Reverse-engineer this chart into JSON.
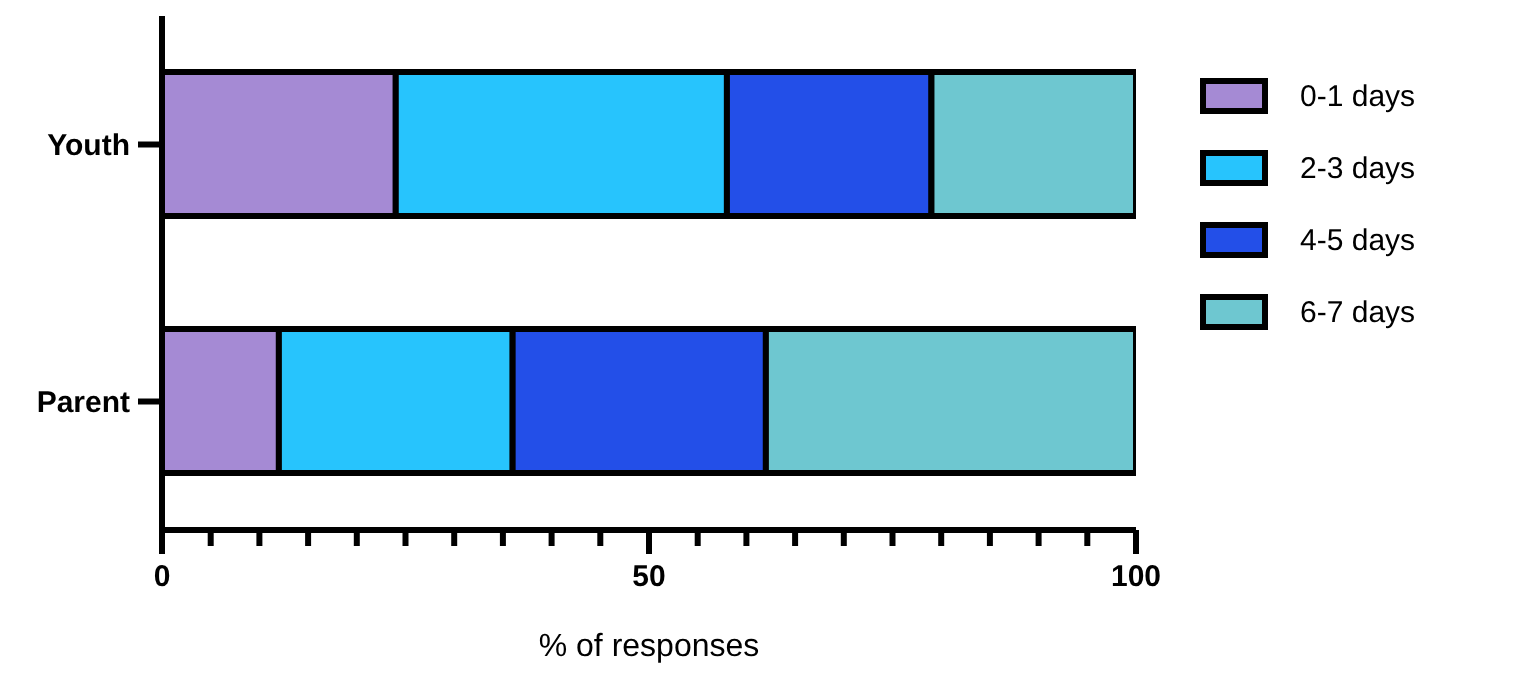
{
  "chart_data": {
    "type": "bar",
    "orientation": "horizontal",
    "stacked": true,
    "categories": [
      "Youth",
      "Parent"
    ],
    "series": [
      {
        "name": "0-1 days",
        "color": "#a58ad4",
        "values": [
          24,
          12
        ]
      },
      {
        "name": "2-3 days",
        "color": "#27c4fd",
        "values": [
          34,
          24
        ]
      },
      {
        "name": "4-5 days",
        "color": "#234fe8",
        "values": [
          21,
          26
        ]
      },
      {
        "name": "6-7 days",
        "color": "#6ec7d0",
        "values": [
          21,
          38
        ]
      }
    ],
    "xlabel": "% of responses",
    "xlim": [
      0,
      100
    ],
    "xticks": [
      0,
      {
        "value": 5,
        "label": null
      },
      {
        "value": 10,
        "label": null
      },
      {
        "value": 15,
        "label": null
      },
      {
        "value": 20,
        "label": null
      },
      {
        "value": 25,
        "label": null
      },
      {
        "value": 30,
        "label": null
      },
      {
        "value": 35,
        "label": null
      },
      {
        "value": 40,
        "label": null
      },
      {
        "value": 45,
        "label": null
      },
      50,
      {
        "value": 55,
        "label": null
      },
      {
        "value": 60,
        "label": null
      },
      {
        "value": 65,
        "label": null
      },
      {
        "value": 70,
        "label": null
      },
      {
        "value": 75,
        "label": null
      },
      {
        "value": 80,
        "label": null
      },
      {
        "value": 85,
        "label": null
      },
      {
        "value": 90,
        "label": null
      },
      {
        "value": 95,
        "label": null
      },
      100
    ],
    "grid": false,
    "legend": "right"
  }
}
